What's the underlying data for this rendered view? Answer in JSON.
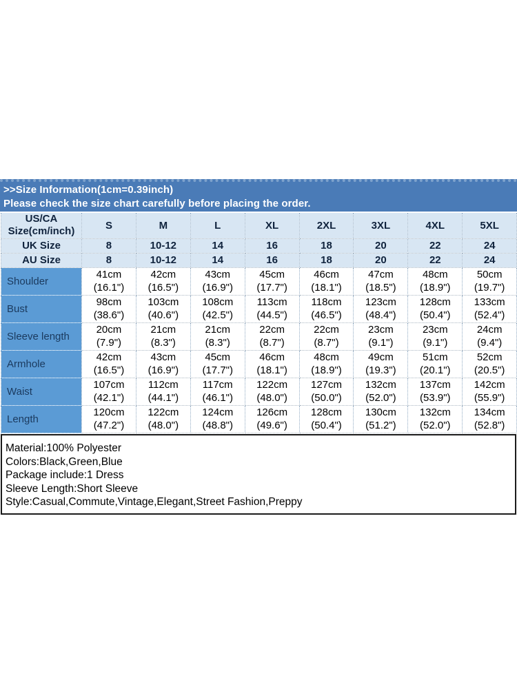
{
  "banner": {
    "title": ">>Size Information(1cm=0.39inch)",
    "subtitle": "Please check the size chart carefully before placing the order."
  },
  "size_table": {
    "corner_header": {
      "line1": "US/CA",
      "line2": "Size(cm/inch)"
    },
    "size_columns": [
      "S",
      "M",
      "L",
      "XL",
      "2XL",
      "3XL",
      "4XL",
      "5XL"
    ],
    "conversion_rows": [
      {
        "label": "UK Size",
        "values": [
          "8",
          "10-12",
          "14",
          "16",
          "18",
          "20",
          "22",
          "24"
        ]
      },
      {
        "label": "AU Size",
        "values": [
          "8",
          "10-12",
          "14",
          "16",
          "18",
          "20",
          "22",
          "24"
        ]
      }
    ],
    "measurement_rows": [
      {
        "label": "Shoulder",
        "cm": [
          "41cm",
          "42cm",
          "43cm",
          "45cm",
          "46cm",
          "47cm",
          "48cm",
          "50cm"
        ],
        "inch": [
          "(16.1\")",
          "(16.5\")",
          "(16.9\")",
          "(17.7\")",
          "(18.1\")",
          "(18.5\")",
          "(18.9\")",
          "(19.7\")"
        ]
      },
      {
        "label": "Bust",
        "cm": [
          "98cm",
          "103cm",
          "108cm",
          "113cm",
          "118cm",
          "123cm",
          "128cm",
          "133cm"
        ],
        "inch": [
          "(38.6\")",
          "(40.6\")",
          "(42.5\")",
          "(44.5\")",
          "(46.5\")",
          "(48.4\")",
          "(50.4\")",
          "(52.4\")"
        ]
      },
      {
        "label": "Sleeve length",
        "cm": [
          "20cm",
          "21cm",
          "21cm",
          "22cm",
          "22cm",
          "23cm",
          "23cm",
          "24cm"
        ],
        "inch": [
          "(7.9\")",
          "(8.3\")",
          "(8.3\")",
          "(8.7\")",
          "(8.7\")",
          "(9.1\")",
          "(9.1\")",
          "(9.4\")"
        ]
      },
      {
        "label": "Armhole",
        "cm": [
          "42cm",
          "43cm",
          "45cm",
          "46cm",
          "48cm",
          "49cm",
          "51cm",
          "52cm"
        ],
        "inch": [
          "(16.5\")",
          "(16.9\")",
          "(17.7\")",
          "(18.1\")",
          "(18.9\")",
          "(19.3\")",
          "(20.1\")",
          "(20.5\")"
        ]
      },
      {
        "label": "Waist",
        "cm": [
          "107cm",
          "112cm",
          "117cm",
          "122cm",
          "127cm",
          "132cm",
          "137cm",
          "142cm"
        ],
        "inch": [
          "(42.1\")",
          "(44.1\")",
          "(46.1\")",
          "(48.0\")",
          "(50.0\")",
          "(52.0\")",
          "(53.9\")",
          "(55.9\")"
        ]
      },
      {
        "label": "Length",
        "cm": [
          "120cm",
          "122cm",
          "124cm",
          "126cm",
          "128cm",
          "130cm",
          "132cm",
          "134cm"
        ],
        "inch": [
          "(47.2\")",
          "(48.0\")",
          "(48.8\")",
          "(49.6\")",
          "(50.4\")",
          "(51.2\")",
          "(52.0\")",
          "(52.8\")"
        ]
      }
    ]
  },
  "product_info": {
    "lines": [
      "Material:100% Polyester",
      "Colors:Black,Green,Blue",
      "Package include:1 Dress",
      "Sleeve Length:Short Sleeve",
      "Style:Casual,Commute,Vintage,Elegant,Street Fashion,Preppy"
    ]
  },
  "colors": {
    "banner_bg": "#4A7BB7",
    "banner_top_strip": "#7FA3CD",
    "banner_text": "#FFFFFF",
    "header_row_bg": "#D8E6F3",
    "label_column_bg": "#5B9BD5",
    "label_text": "#1B3A5E",
    "grid_line": "#8FA9C2",
    "body_text": "#000000",
    "info_border": "#1A1A1A"
  }
}
